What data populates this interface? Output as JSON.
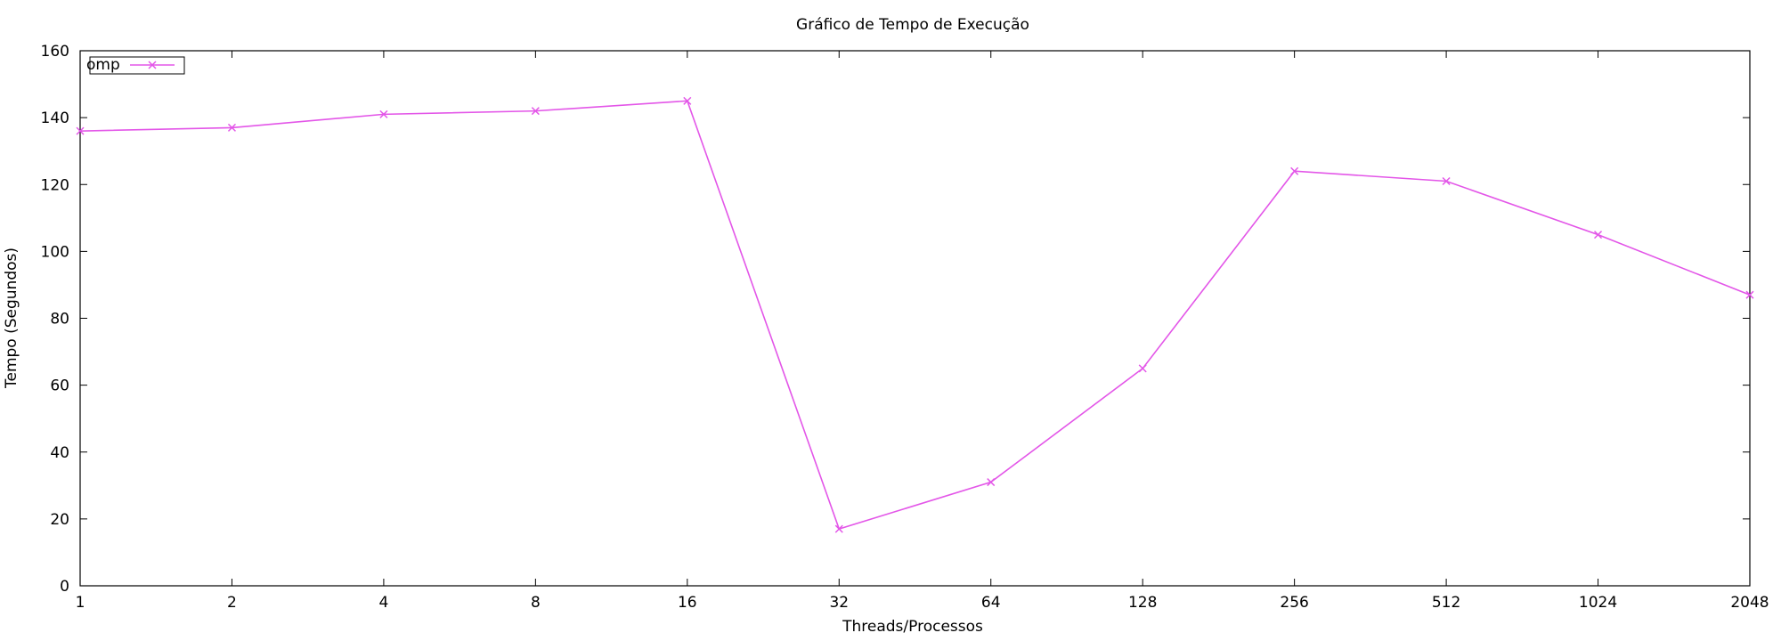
{
  "chart_data": {
    "type": "line",
    "title": "Gráfico de Tempo de Execução",
    "xlabel": "Threads/Processos",
    "ylabel": "Tempo (Segundos)",
    "categories": [
      "1",
      "2",
      "4",
      "8",
      "16",
      "32",
      "64",
      "128",
      "256",
      "512",
      "1024",
      "2048"
    ],
    "series": [
      {
        "name": "omp",
        "color": "#e356e8",
        "marker": "x",
        "values": [
          136,
          137,
          141,
          142,
          145,
          17,
          31,
          65,
          124,
          121,
          105,
          87
        ]
      }
    ],
    "yticks": [
      0,
      20,
      40,
      60,
      80,
      100,
      120,
      140,
      160
    ],
    "ylim": [
      0,
      160
    ],
    "grid": false,
    "legend_position": "top-left"
  }
}
